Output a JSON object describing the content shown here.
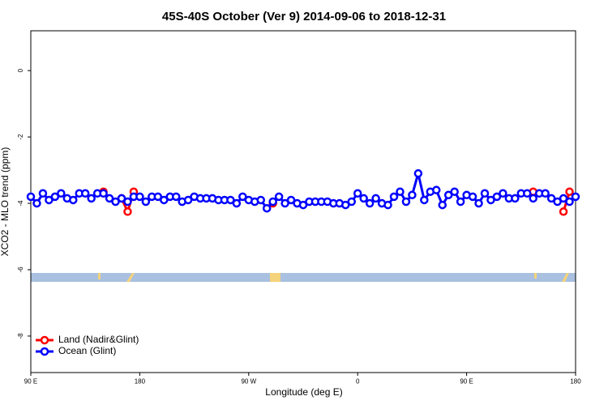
{
  "chart_data": {
    "type": "line",
    "title": "45S-40S October (Ver 9)   2014-09-06 to 2018-12-31",
    "x_label": "Longitude (deg E)",
    "y_label": "XCO2 - MLO trend (ppm)",
    "x": [
      90,
      95,
      100,
      105,
      110,
      115,
      120,
      125,
      130,
      135,
      140,
      145,
      150,
      155,
      160,
      165,
      170,
      175,
      180,
      185,
      190,
      195,
      200,
      205,
      210,
      215,
      220,
      225,
      230,
      235,
      240,
      245,
      250,
      255,
      260,
      265,
      270,
      275,
      280,
      285,
      290,
      295,
      300,
      305,
      310,
      315,
      320,
      325,
      330,
      335,
      340,
      345,
      350,
      355,
      360,
      365,
      370,
      375,
      380,
      385,
      390,
      395,
      400,
      405,
      410,
      415,
      420,
      425,
      430,
      435,
      440,
      445,
      450,
      455,
      460,
      465,
      470,
      475,
      480,
      485,
      490,
      495,
      500,
      505,
      510,
      515,
      520,
      525,
      530,
      535,
      540
    ],
    "series": [
      {
        "name": "Land (Nadir&Glint)",
        "color": "#ff0000",
        "values": [
          null,
          null,
          null,
          null,
          null,
          null,
          null,
          null,
          null,
          null,
          null,
          null,
          -3.65,
          null,
          null,
          -3.85,
          -4.25,
          -3.65,
          null,
          null,
          null,
          null,
          null,
          null,
          null,
          null,
          null,
          null,
          null,
          null,
          null,
          null,
          null,
          null,
          null,
          null,
          null,
          null,
          null,
          null,
          -4.0,
          null,
          null,
          null,
          null,
          null,
          null,
          null,
          null,
          null,
          null,
          null,
          null,
          null,
          null,
          null,
          null,
          null,
          null,
          null,
          null,
          null,
          null,
          null,
          null,
          null,
          null,
          null,
          null,
          null,
          null,
          null,
          null,
          null,
          null,
          null,
          null,
          null,
          null,
          null,
          null,
          null,
          null,
          -3.65,
          null,
          null,
          null,
          null,
          -4.25,
          -3.65,
          null
        ]
      },
      {
        "name": "Ocean (Glint)",
        "color": "#0000ff",
        "values": [
          -3.8,
          -4.0,
          -3.7,
          -3.9,
          -3.8,
          -3.7,
          -3.85,
          -3.9,
          -3.7,
          -3.7,
          -3.85,
          -3.7,
          -3.7,
          -3.85,
          -3.95,
          -3.85,
          -3.95,
          -3.8,
          -3.8,
          -3.95,
          -3.8,
          -3.8,
          -3.9,
          -3.8,
          -3.8,
          -3.95,
          -3.9,
          -3.8,
          -3.85,
          -3.85,
          -3.85,
          -3.9,
          -3.9,
          -3.9,
          -4.0,
          -3.8,
          -3.9,
          -3.95,
          -3.9,
          -4.15,
          -3.95,
          -3.8,
          -4.0,
          -3.9,
          -4.0,
          -4.05,
          -3.95,
          -3.95,
          -3.95,
          -3.95,
          -4.0,
          -4.0,
          -4.05,
          -3.95,
          -3.7,
          -3.85,
          -4.0,
          -3.85,
          -4.0,
          -4.05,
          -3.8,
          -3.65,
          -3.95,
          -3.75,
          -3.1,
          -3.9,
          -3.65,
          -3.6,
          -4.05,
          -3.75,
          -3.65,
          -3.95,
          -3.75,
          -3.8,
          -4.0,
          -3.7,
          -3.9,
          -3.8,
          -3.7,
          -3.85,
          -3.85,
          -3.7,
          -3.7,
          -3.85,
          -3.7,
          -3.7,
          -3.85,
          -3.95,
          -3.85,
          -3.95,
          -3.8
        ]
      }
    ],
    "xlim": [
      90,
      540
    ],
    "xticks": [
      {
        "value": 90,
        "label": "90 E"
      },
      180,
      {
        "value": 270,
        "label": "90 W"
      },
      {
        "value": 360,
        "label": "0"
      },
      {
        "value": 450,
        "label": "90 E"
      },
      {
        "value": 540,
        "label": "180"
      }
    ],
    "ylim": [
      -9.1,
      1.2
    ],
    "yticks": [
      0,
      -2,
      -4,
      -6,
      -8
    ],
    "legend": "bottom-left"
  }
}
